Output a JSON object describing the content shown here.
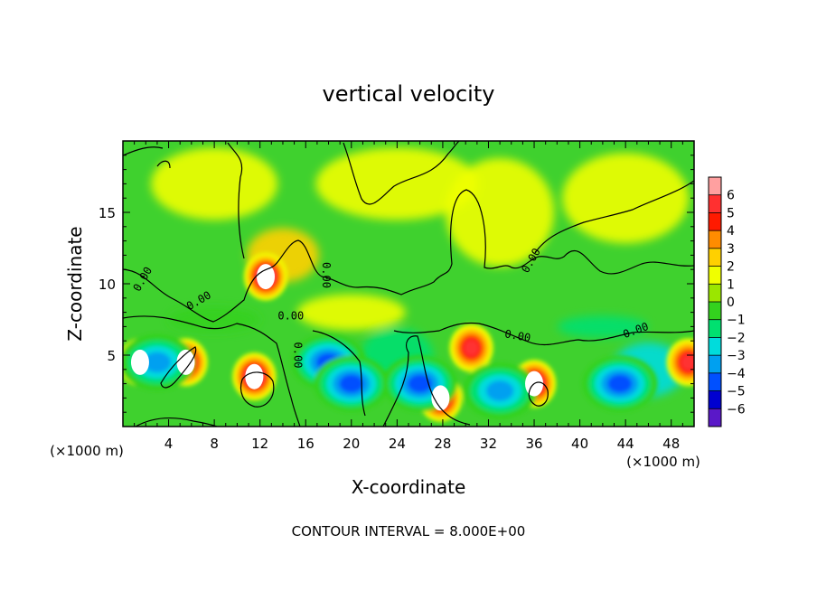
{
  "chart_data": {
    "type": "heatmap",
    "title": "vertical velocity",
    "xlabel": "X-coordinate",
    "ylabel": "Z-coordinate",
    "x_units": "(×1000 m)",
    "xlim": [
      0,
      50
    ],
    "ylim": [
      0,
      20
    ],
    "x_ticks": [
      {
        "value": 4,
        "label": "4"
      },
      {
        "value": 8,
        "label": "8"
      },
      {
        "value": 12,
        "label": "12"
      },
      {
        "value": 16,
        "label": "16"
      },
      {
        "value": 20,
        "label": "20"
      },
      {
        "value": 24,
        "label": "24"
      },
      {
        "value": 28,
        "label": "28"
      },
      {
        "value": 32,
        "label": "32"
      },
      {
        "value": 36,
        "label": "36"
      },
      {
        "value": 40,
        "label": "40"
      },
      {
        "value": 44,
        "label": "44"
      },
      {
        "value": 48,
        "label": "48"
      }
    ],
    "y_ticks": [
      {
        "value": 5,
        "label": "5"
      },
      {
        "value": 10,
        "label": "10"
      },
      {
        "value": 15,
        "label": "15"
      }
    ],
    "colorbar": {
      "labels": [
        "6",
        "5",
        "4",
        "3",
        "2",
        "1",
        "0",
        "−1",
        "−2",
        "−3",
        "−4",
        "−5",
        "−6"
      ],
      "colors": [
        "#ffa0a0",
        "#ff3030",
        "#ff1a00",
        "#ff8c00",
        "#ffd000",
        "#f0ff00",
        "#9be600",
        "#33d21e",
        "#00e070",
        "#00dcdc",
        "#00a0f0",
        "#0050ff",
        "#0000d0",
        "#5a18c8"
      ]
    },
    "contour_label": "0.00",
    "footnote": "CONTOUR INTERVAL = 8.000E+00",
    "features": [
      {
        "kind": "updraft",
        "x": 1.5,
        "z": 4.5,
        "peak": 6
      },
      {
        "kind": "updraft",
        "x": 5.5,
        "z": 4.5,
        "peak": 6
      },
      {
        "kind": "updraft",
        "x": 11.5,
        "z": 3.5,
        "peak": 6
      },
      {
        "kind": "updraft",
        "x": 12.5,
        "z": 10.5,
        "peak": 6
      },
      {
        "kind": "updraft",
        "x": 27.8,
        "z": 2.0,
        "peak": 6
      },
      {
        "kind": "updraft",
        "x": 30.5,
        "z": 5.5,
        "peak": 5
      },
      {
        "kind": "updraft",
        "x": 36.0,
        "z": 3.0,
        "peak": 6
      },
      {
        "kind": "updraft",
        "x": 49.5,
        "z": 4.5,
        "peak": 5
      },
      {
        "kind": "downdraft",
        "x": 3.0,
        "z": 4.5,
        "peak": -4
      },
      {
        "kind": "downdraft",
        "x": 18.0,
        "z": 4.5,
        "peak": -5
      },
      {
        "kind": "downdraft",
        "x": 20.0,
        "z": 3.0,
        "peak": -5
      },
      {
        "kind": "downdraft",
        "x": 26.0,
        "z": 3.0,
        "peak": -5
      },
      {
        "kind": "downdraft",
        "x": 33.0,
        "z": 2.5,
        "peak": -4
      },
      {
        "kind": "downdraft",
        "x": 43.5,
        "z": 3.0,
        "peak": -5
      }
    ]
  }
}
